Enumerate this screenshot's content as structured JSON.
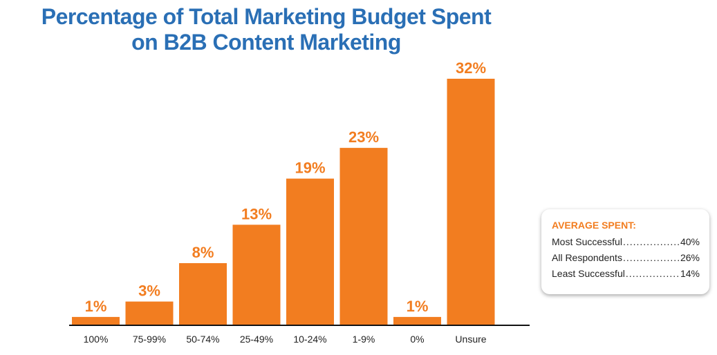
{
  "chart_data": {
    "type": "bar",
    "title": [
      "Percentage of Total Marketing Budget Spent",
      "on B2B Content Marketing"
    ],
    "categories": [
      "100%",
      "75-99%",
      "50-74%",
      "25-49%",
      "10-24%",
      "1-9%",
      "0%",
      "Unsure"
    ],
    "values": [
      1,
      3,
      8,
      13,
      19,
      23,
      1,
      32
    ],
    "value_labels": [
      "1%",
      "3%",
      "8%",
      "13%",
      "19%",
      "23%",
      "1%",
      "32%"
    ],
    "ylim": [
      0,
      32
    ],
    "grid": false,
    "bar_color": "#f27d20",
    "title_color": "#2a6fb5"
  },
  "legend": {
    "title": "AVERAGE SPENT:",
    "rows": [
      {
        "label": "Most Successful",
        "value": "40%"
      },
      {
        "label": "All Respondents",
        "value": "26%"
      },
      {
        "label": "Least Successful",
        "value": "14%"
      }
    ]
  }
}
